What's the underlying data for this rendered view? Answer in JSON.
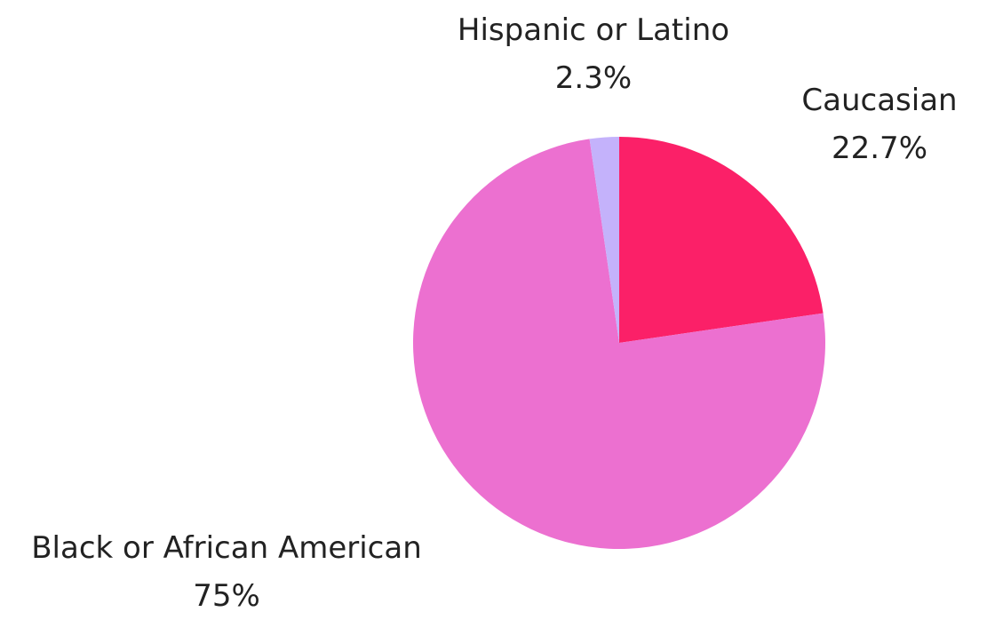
{
  "chart_data": {
    "type": "pie",
    "title": "",
    "start_angle_deg": 0,
    "direction": "clockwise",
    "slices": [
      {
        "label": "Caucasian",
        "value": 22.7,
        "display": "22.7%",
        "color": "#fb2068"
      },
      {
        "label": "Black or African American",
        "value": 75,
        "display": "75%",
        "color": "#ec70d0"
      },
      {
        "label": "Hispanic or Latino",
        "value": 2.3,
        "display": "2.3%",
        "color": "#c4b2fb"
      }
    ]
  }
}
